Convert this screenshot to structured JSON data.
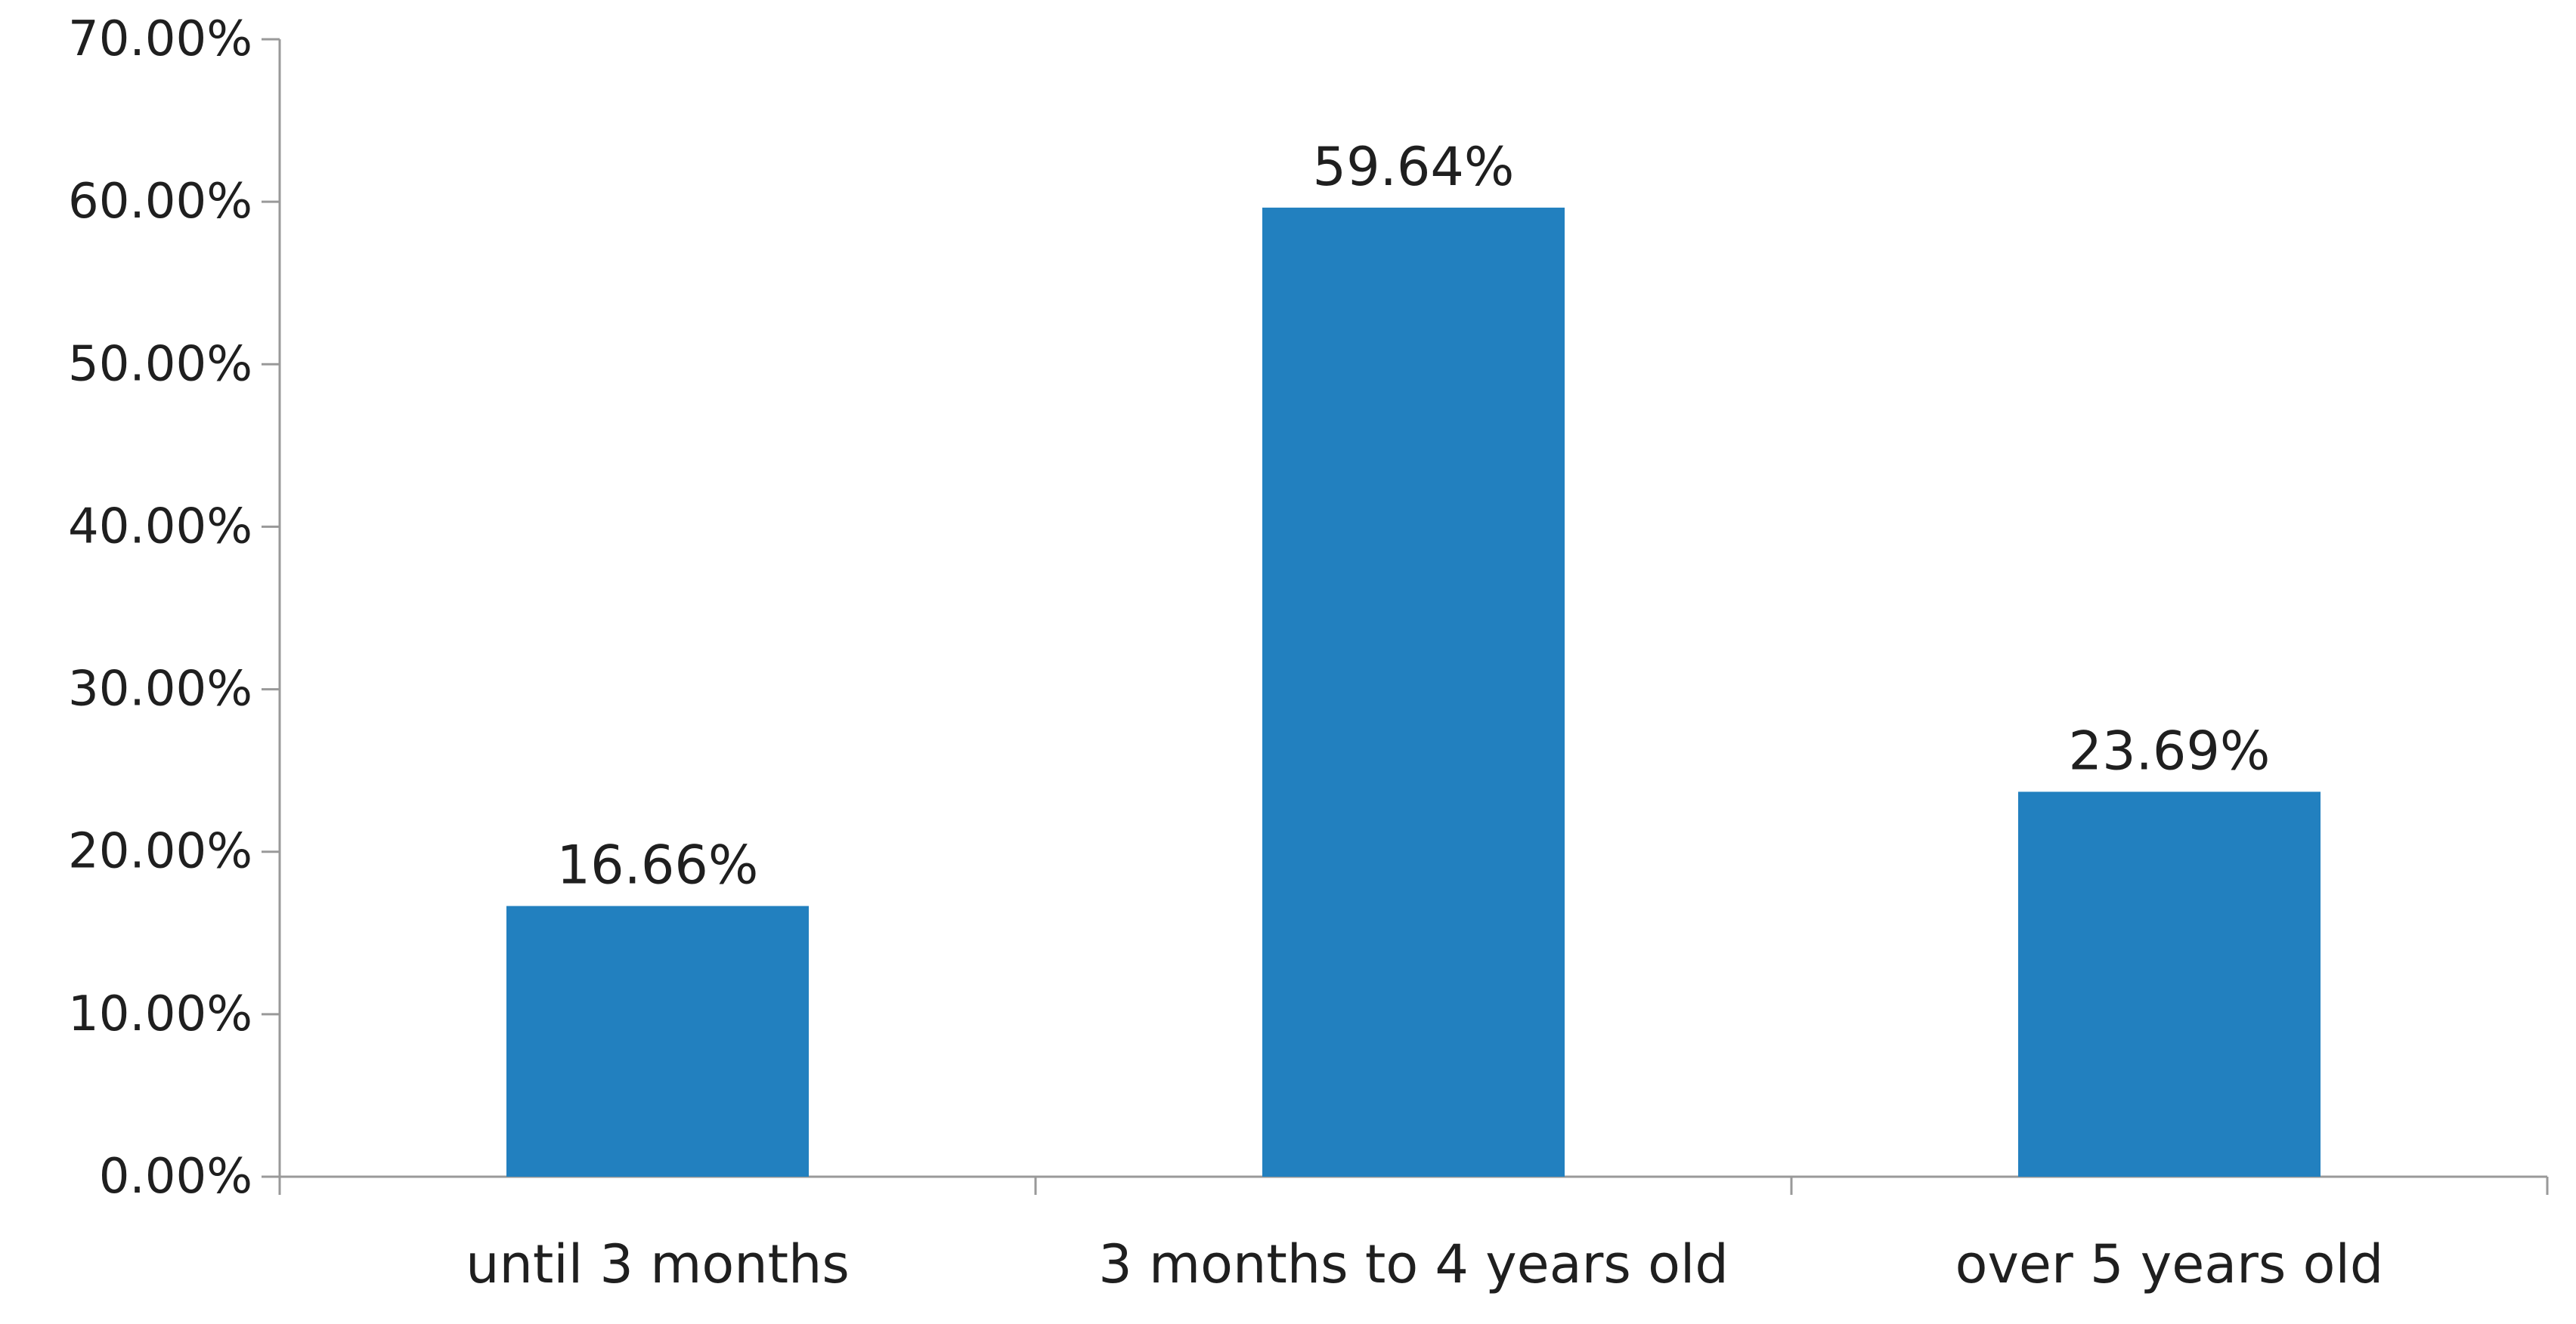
{
  "chart_data": {
    "type": "bar",
    "categories": [
      "until 3 months",
      "3 months to 4 years old",
      "over 5 years old"
    ],
    "values": [
      16.66,
      59.64,
      23.69
    ],
    "data_labels": [
      "16.66%",
      "59.64%",
      "23.69%"
    ],
    "title": "",
    "xlabel": "",
    "ylabel": "",
    "ylim": [
      0,
      70
    ],
    "yticks": [
      0,
      10,
      20,
      30,
      40,
      50,
      60,
      70
    ],
    "ytick_labels": [
      "0.00%",
      "10.00%",
      "20.00%",
      "30.00%",
      "40.00%",
      "50.00%",
      "60.00%",
      "70.00%"
    ],
    "grid": false,
    "legend": "none",
    "colors": {
      "bar": "#2280bf",
      "axis": "#999999",
      "text": "#1f1f1f"
    }
  }
}
